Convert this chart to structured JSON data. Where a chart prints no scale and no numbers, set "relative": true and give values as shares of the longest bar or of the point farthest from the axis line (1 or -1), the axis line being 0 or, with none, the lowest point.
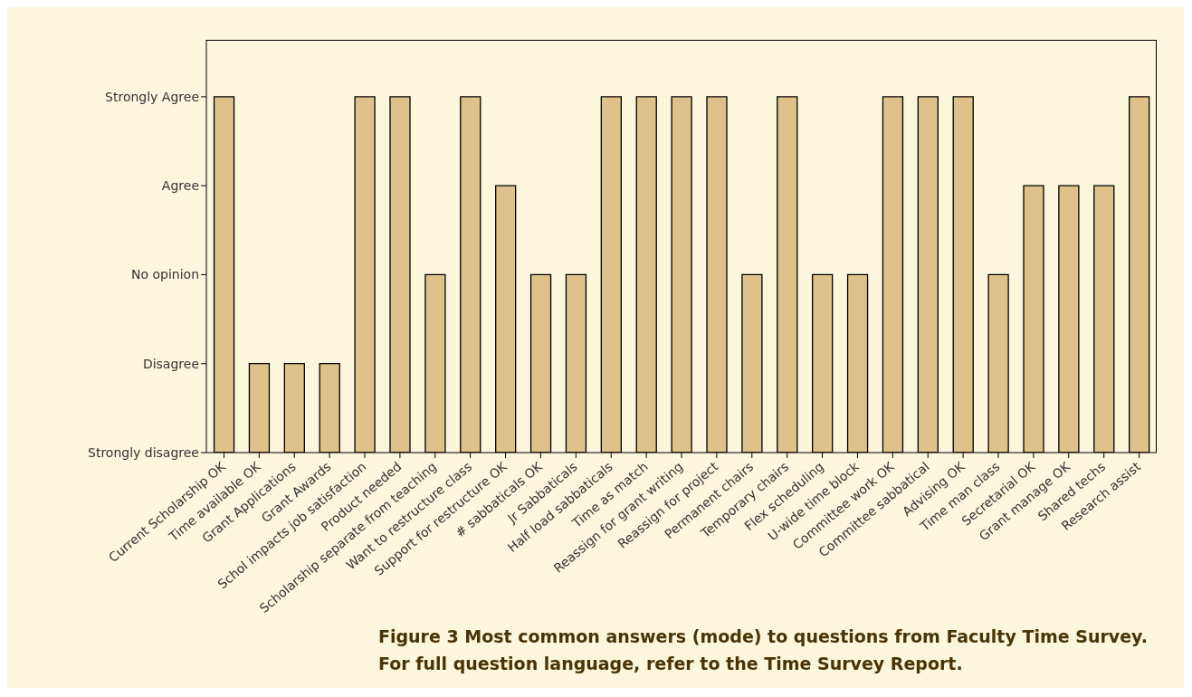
{
  "chart_data": {
    "type": "bar",
    "relative": true,
    "categories": [
      "Current Scholarship OK",
      "Time available OK",
      "Grant Applications",
      "Grant Awards",
      "Schol impacts job satisfaction",
      "Product needed",
      "Scholarship separate from teaching",
      "Want to restructure class",
      "Support for restructure OK",
      "# sabbaticals OK",
      "Jr Sabbaticals",
      "Half load sabbaticals",
      "Time as match",
      "Reassign for grant writing",
      "Reassign for project",
      "Permanent chairs",
      "Temporary chairs",
      "Flex scheduling",
      "U-wide time block",
      "Committee work OK",
      "Committee sabbatical",
      "Advising OK",
      "Time man class",
      "Secretarial OK",
      "Grant manage OK",
      "Shared techs",
      "Research assist"
    ],
    "values": [
      1,
      0.25,
      0.25,
      0.25,
      1,
      1,
      0.5,
      1,
      0.75,
      0.5,
      0.5,
      1,
      1,
      1,
      1,
      0.5,
      1,
      0.5,
      0.5,
      1,
      1,
      1,
      0.5,
      0.75,
      0.75,
      0.75,
      1
    ],
    "color": "#dfc18c",
    "grid": false,
    "annotations": [
      "Strongly disagree",
      "Disagree",
      "No opinion",
      "Agree",
      "Strongly Agree",
      "Figure 3 Most common answers (mode) to questions from Faculty Time Survey.",
      "For full question language, refer to the Time Survey Report."
    ]
  }
}
